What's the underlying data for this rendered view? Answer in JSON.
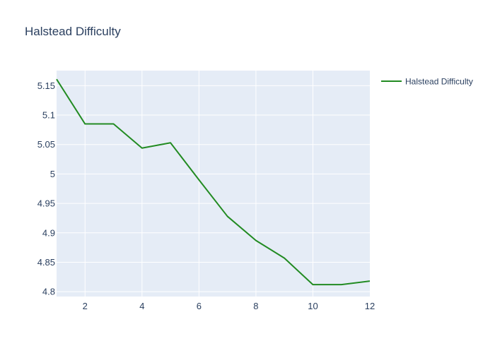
{
  "chart_data": {
    "type": "line",
    "title": "Halstead Difficulty",
    "xlabel": "",
    "ylabel": "",
    "x": [
      1,
      2,
      3,
      4,
      5,
      6,
      7,
      8,
      9,
      10,
      11,
      12
    ],
    "series": [
      {
        "name": "Halstead Difficulty",
        "color": "#228b22",
        "values": [
          5.161,
          5.085,
          5.085,
          5.044,
          5.053,
          4.99,
          4.928,
          4.887,
          4.857,
          4.812,
          4.812,
          4.818
        ]
      }
    ],
    "xlim": [
      1,
      12
    ],
    "ylim": [
      4.7918,
      5.1756
    ],
    "xticks": [
      {
        "value": 2,
        "label": "2"
      },
      {
        "value": 4,
        "label": "4"
      },
      {
        "value": 6,
        "label": "6"
      },
      {
        "value": 8,
        "label": "8"
      },
      {
        "value": 10,
        "label": "10"
      },
      {
        "value": 12,
        "label": "12"
      }
    ],
    "yticks": [
      {
        "value": 4.8,
        "label": "4.8"
      },
      {
        "value": 4.85,
        "label": "4.85"
      },
      {
        "value": 4.9,
        "label": "4.9"
      },
      {
        "value": 4.95,
        "label": "4.95"
      },
      {
        "value": 5.0,
        "label": "5"
      },
      {
        "value": 5.05,
        "label": "5.05"
      },
      {
        "value": 5.1,
        "label": "5.1"
      },
      {
        "value": 5.15,
        "label": "5.15"
      }
    ],
    "grid": true,
    "legend_position": "top-right",
    "plot_background": "#e5ecf6",
    "grid_color": "#ffffff"
  }
}
